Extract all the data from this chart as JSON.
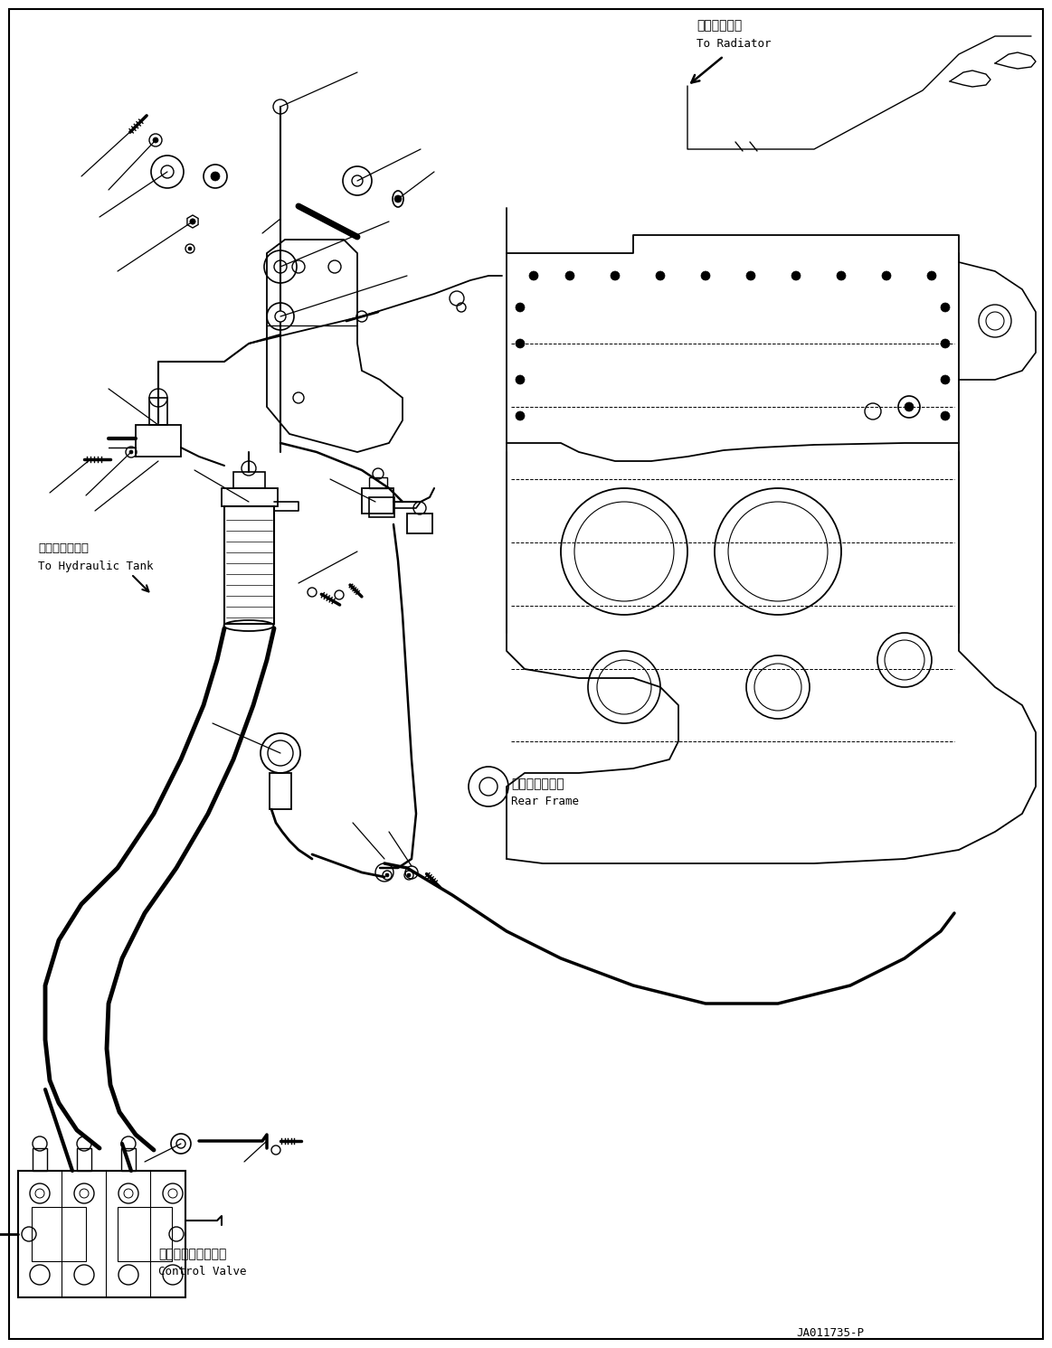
{
  "part_number": "JA011735-P",
  "background_color": "#ffffff",
  "line_color": "#000000",
  "labels": {
    "to_radiator_jp": "ラジエータへ",
    "to_radiator_en": "To Radiator",
    "to_hydraulic_jp": "作動油タンクへ",
    "to_hydraulic_en": "To Hydraulic Tank",
    "rear_frame_jp": "リヤーフレーム",
    "rear_frame_en": "Rear Frame",
    "control_valve_jp": "コントロールバルブ",
    "control_valve_en": "Control Valve"
  },
  "figsize": [
    11.63,
    14.91
  ],
  "dpi": 100
}
